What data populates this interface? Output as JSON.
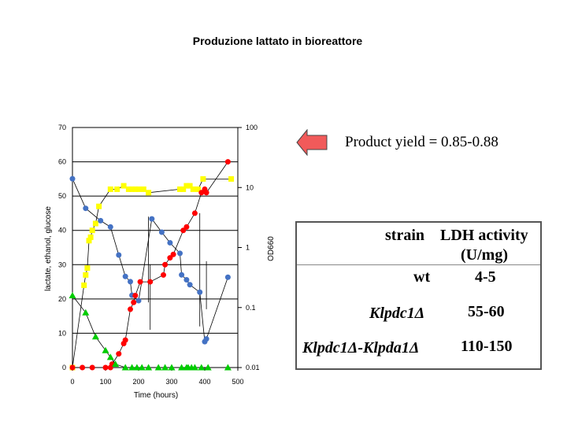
{
  "page_title": "Produzione lattato in bioreattore",
  "annotation": {
    "text": "Product yield = 0.85-0.88",
    "arrow_color": "#f15a5a"
  },
  "table": {
    "headers": [
      "strain",
      "LDH activity",
      "(U/mg)"
    ],
    "rows": [
      {
        "strain": "wt",
        "activity": "4-5"
      },
      {
        "strain": "Klpdc1Δ",
        "activity": "55-60"
      },
      {
        "strain": "Klpdc1Δ-Klpda1Δ",
        "activity": "110-150"
      }
    ]
  },
  "chart_data": {
    "type": "scatter",
    "xlabel": "Time (hours)",
    "ylabel_left": "lactate, ethanol, glucose",
    "ylabel_right": "OD660",
    "x_ticks": [
      0,
      100,
      200,
      300,
      400,
      500
    ],
    "y_left_ticks": [
      0,
      10,
      20,
      30,
      40,
      50,
      60,
      70
    ],
    "y_right_ticks": [
      "0.01",
      "0.1",
      "1",
      "10",
      "100"
    ],
    "xlim": [
      0,
      500
    ],
    "ylim_left": [
      0,
      70
    ],
    "ylim_right": [
      0.01,
      100
    ],
    "right_axis_scale": "log",
    "grid": "horizontal",
    "series": [
      {
        "color": "#ffff00",
        "marker": "square",
        "axis": "left",
        "x": [
          0,
          35,
          40,
          45,
          50,
          55,
          60,
          70,
          80,
          115,
          135,
          155,
          170,
          180,
          190,
          200,
          215,
          230,
          325,
          335,
          345,
          355,
          365,
          380,
          395,
          480
        ],
        "y": [
          0,
          24,
          27,
          29,
          37,
          38,
          40,
          42,
          47,
          52,
          52,
          53,
          52,
          52,
          52,
          52,
          52,
          51,
          52,
          52,
          53,
          53,
          52,
          52,
          55,
          55
        ]
      },
      {
        "color": "#4472c4",
        "marker": "circle",
        "axis": "right_log",
        "x": [
          0,
          40,
          85,
          115,
          140,
          160,
          175,
          180,
          200,
          240,
          270,
          295,
          325,
          330,
          345,
          355,
          385,
          400,
          405,
          470
        ],
        "y": [
          14,
          4.5,
          2.8,
          2.2,
          0.75,
          0.33,
          0.27,
          0.16,
          0.13,
          3,
          1.8,
          1.2,
          0.8,
          0.35,
          0.29,
          0.24,
          0.18,
          0.027,
          0.03,
          0.32
        ]
      },
      {
        "color": "#ff0000",
        "marker": "circle",
        "axis": "left",
        "x": [
          0,
          30,
          60,
          100,
          115,
          120,
          140,
          155,
          160,
          175,
          185,
          190,
          205,
          235,
          275,
          280,
          295,
          305,
          335,
          345,
          370,
          390,
          400,
          405,
          470
        ],
        "y": [
          0,
          0,
          0,
          0,
          0,
          1,
          4,
          7,
          8,
          17,
          19,
          21,
          25,
          25,
          27,
          30,
          32,
          33,
          40,
          41,
          45,
          51,
          52,
          51,
          60
        ]
      },
      {
        "color": "#00cc00",
        "marker": "triangle",
        "axis": "left",
        "x": [
          0,
          40,
          70,
          100,
          115,
          130,
          160,
          180,
          195,
          210,
          230,
          260,
          280,
          300,
          330,
          345,
          350,
          360,
          370,
          390,
          410,
          470
        ],
        "y": [
          21,
          16,
          9,
          5,
          3,
          1,
          0,
          0,
          0,
          0,
          0,
          0,
          0,
          0,
          0,
          0,
          0,
          0,
          0,
          0,
          0,
          0
        ]
      }
    ]
  }
}
